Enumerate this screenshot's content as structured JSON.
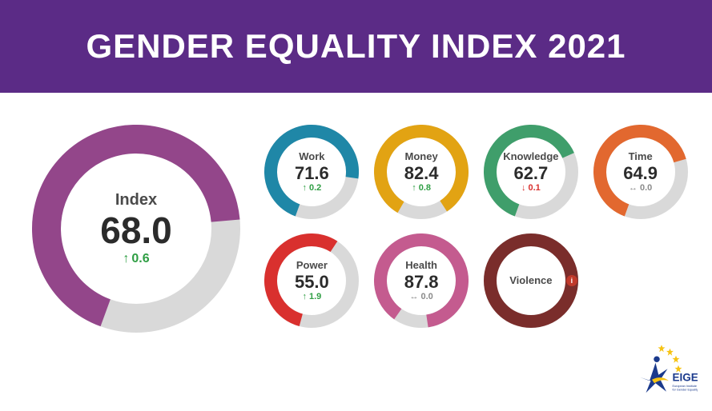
{
  "banner": {
    "text": "GENDER EQUALITY INDEX 2021",
    "background_color": "#5b2b86",
    "text_color": "#ffffff",
    "fontsize": 42
  },
  "page": {
    "background_color": "#ffffff",
    "track_color": "#d9d9d9",
    "label_color": "#4a4a4a",
    "value_color": "#2b2b2b",
    "up_color": "#2f9e44",
    "down_color": "#d9302e",
    "neutral_color": "#8a8a8a"
  },
  "main": {
    "type": "donut",
    "label": "Index",
    "value": "68.0",
    "pct": 68.0,
    "color": "#93468a",
    "change_value": "0.6",
    "change_dir": "up",
    "size": 260,
    "thickness": 36,
    "label_fontsize": 20,
    "value_fontsize": 46,
    "change_fontsize": 16,
    "start_angle": 200
  },
  "domains": [
    {
      "type": "donut",
      "label": "Work",
      "value": "71.6",
      "pct": 71.6,
      "color": "#1f87a7",
      "change_value": "0.2",
      "change_dir": "up",
      "start_angle": 200
    },
    {
      "type": "donut",
      "label": "Money",
      "value": "82.4",
      "pct": 82.4,
      "color": "#e2a313",
      "change_value": "0.8",
      "change_dir": "up",
      "start_angle": 210
    },
    {
      "type": "donut",
      "label": "Knowledge",
      "value": "62.7",
      "pct": 62.7,
      "color": "#3f9e6b",
      "change_value": "0.1",
      "change_dir": "down",
      "start_angle": 200
    },
    {
      "type": "donut",
      "label": "Time",
      "value": "64.9",
      "pct": 64.9,
      "color": "#e2682f",
      "change_value": "0.0",
      "change_dir": "neutral",
      "start_angle": 200
    },
    {
      "type": "donut",
      "label": "Power",
      "value": "55.0",
      "pct": 55.0,
      "color": "#d9302e",
      "change_value": "1.9",
      "change_dir": "up",
      "start_angle": 195
    },
    {
      "type": "donut",
      "label": "Health",
      "value": "87.8",
      "pct": 87.8,
      "color": "#c45b8f",
      "change_value": "0.0",
      "change_dir": "neutral",
      "start_angle": 215
    },
    {
      "type": "donut",
      "label": "Violence",
      "value": "",
      "pct": 100,
      "color": "#7a2d2b",
      "change_value": "",
      "change_dir": "none",
      "start_angle": 0,
      "info": true,
      "info_color": "#c0392b"
    }
  ],
  "small_donut_style": {
    "size": 118,
    "thickness": 16,
    "label_fontsize": 13,
    "value_fontsize": 22,
    "change_fontsize": 11
  },
  "logo": {
    "acronym": "EIGE",
    "subtitle": "European Institute for Gender Equality",
    "star_color": "#f6c313",
    "figure_color": "#1b3a8c",
    "text_color": "#1b3a8c"
  }
}
